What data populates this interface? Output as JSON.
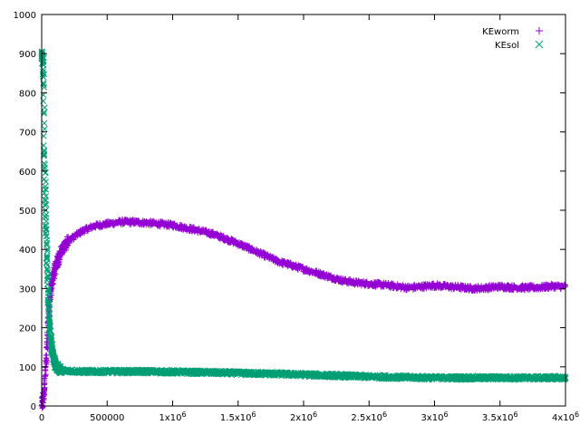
{
  "chart_data": {
    "type": "scatter",
    "title": "",
    "xlabel": "",
    "ylabel": "",
    "xlim": [
      0,
      4000000
    ],
    "ylim": [
      0,
      1000
    ],
    "legend_position": "top-right",
    "grid": false,
    "x_ticks": [
      {
        "value": 0,
        "label": "0"
      },
      {
        "value": 500000,
        "label": "500000"
      },
      {
        "value": 1000000,
        "label": "1x10",
        "sup": "6"
      },
      {
        "value": 1500000,
        "label": "1.5x10",
        "sup": "6"
      },
      {
        "value": 2000000,
        "label": "2x10",
        "sup": "6"
      },
      {
        "value": 2500000,
        "label": "2.5x10",
        "sup": "6"
      },
      {
        "value": 3000000,
        "label": "3x10",
        "sup": "6"
      },
      {
        "value": 3500000,
        "label": "3.5x10",
        "sup": "6"
      },
      {
        "value": 4000000,
        "label": "4x10",
        "sup": "6"
      }
    ],
    "y_ticks": [
      {
        "value": 0,
        "label": "0"
      },
      {
        "value": 100,
        "label": "100"
      },
      {
        "value": 200,
        "label": "200"
      },
      {
        "value": 300,
        "label": "300"
      },
      {
        "value": 400,
        "label": "400"
      },
      {
        "value": 500,
        "label": "500"
      },
      {
        "value": 600,
        "label": "600"
      },
      {
        "value": 700,
        "label": "700"
      },
      {
        "value": 800,
        "label": "800"
      },
      {
        "value": 900,
        "label": "900"
      },
      {
        "value": 1000,
        "label": "1000"
      }
    ],
    "series": [
      {
        "name": "KEworm",
        "marker": "plus",
        "color": "#9400d3",
        "x": [
          0,
          20000,
          40000,
          60000,
          80000,
          100000,
          150000,
          200000,
          300000,
          400000,
          500000,
          600000,
          700000,
          800000,
          900000,
          1000000,
          1100000,
          1200000,
          1300000,
          1400000,
          1500000,
          1600000,
          1700000,
          1800000,
          1900000,
          2000000,
          2100000,
          2200000,
          2300000,
          2400000,
          2500000,
          2600000,
          2700000,
          2800000,
          2900000,
          3000000,
          3100000,
          3200000,
          3300000,
          3400000,
          3500000,
          3600000,
          3700000,
          3800000,
          3900000,
          4000000
        ],
        "y": [
          0,
          40,
          150,
          270,
          320,
          350,
          395,
          420,
          445,
          460,
          465,
          470,
          470,
          468,
          465,
          462,
          455,
          448,
          440,
          428,
          415,
          400,
          385,
          370,
          360,
          350,
          340,
          330,
          320,
          315,
          312,
          310,
          306,
          302,
          305,
          308,
          305,
          303,
          300,
          302,
          305,
          303,
          302,
          303,
          306,
          305
        ],
        "spread": 7
      },
      {
        "name": "KEsol",
        "marker": "cross",
        "color": "#009e73",
        "x": [
          0,
          5000,
          10000,
          15000,
          20000,
          30000,
          40000,
          50000,
          60000,
          70000,
          80000,
          100000,
          120000,
          150000,
          200000,
          300000,
          500000,
          800000,
          1000000,
          1200000,
          1500000,
          1800000,
          2000000,
          2200000,
          2500000,
          2800000,
          3000000,
          3200000,
          3500000,
          3800000,
          4000000
        ],
        "y": [
          900,
          890,
          880,
          820,
          650,
          500,
          380,
          280,
          210,
          170,
          140,
          110,
          98,
          92,
          90,
          88,
          88,
          88,
          87,
          86,
          84,
          82,
          80,
          78,
          75,
          73,
          72,
          72,
          72,
          72,
          72
        ],
        "spread": 5
      }
    ]
  }
}
